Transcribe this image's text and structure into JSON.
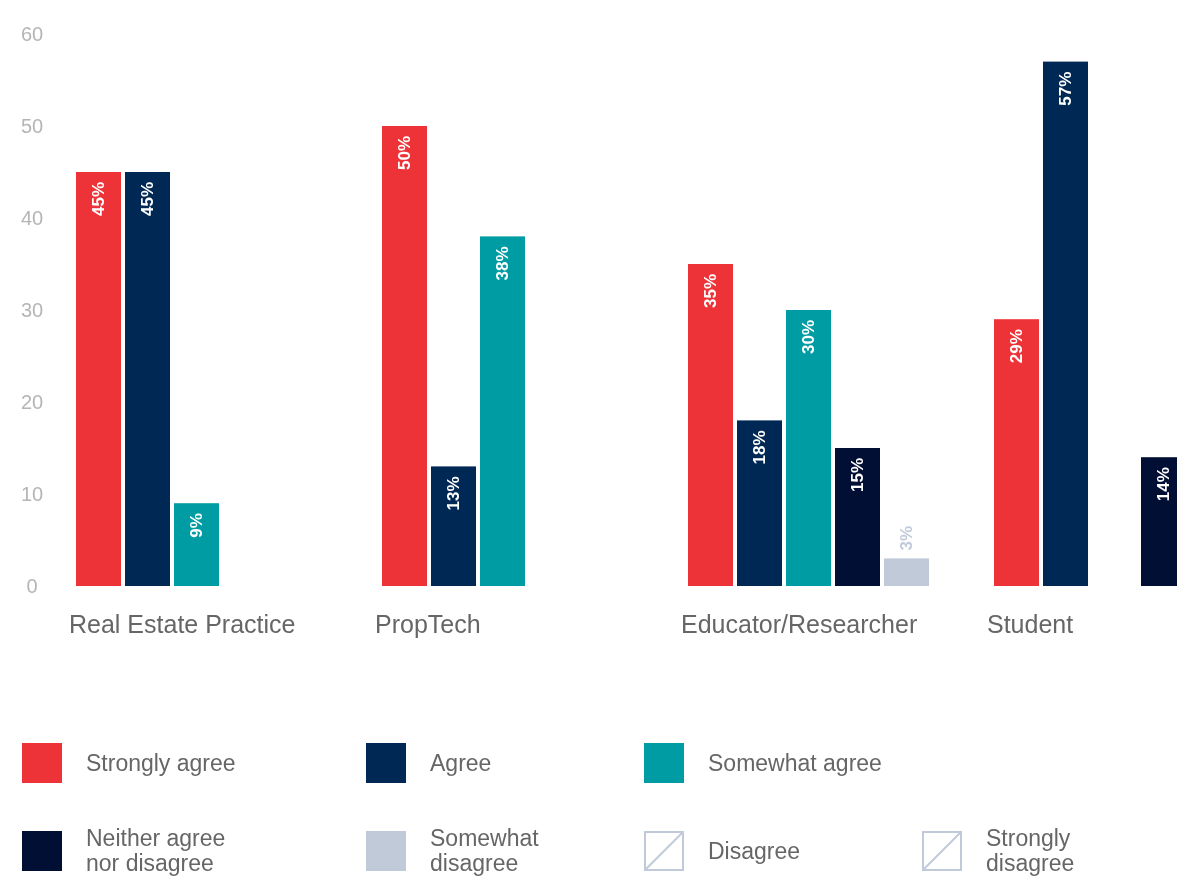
{
  "chart_data": {
    "type": "bar",
    "categories": [
      "Real Estate Practice",
      "PropTech",
      "Educator/Researcher",
      "Student"
    ],
    "series": [
      {
        "name": "Strongly agree",
        "color": "#ee3338",
        "values": [
          45,
          50,
          35,
          29
        ],
        "value_labels": [
          "45%",
          "50%",
          "35%",
          "29%"
        ]
      },
      {
        "name": "Agree",
        "color": "#002855",
        "values": [
          45,
          13,
          18,
          57
        ],
        "value_labels": [
          "45%",
          "13%",
          "18%",
          "57%"
        ]
      },
      {
        "name": "Somewhat agree",
        "color": "#009ca3",
        "values": [
          9,
          38,
          30,
          null
        ],
        "value_labels": [
          "9%",
          "38%",
          "30%",
          null
        ]
      },
      {
        "name": "Neither agree nor disagree",
        "color": "#000f33",
        "values": [
          null,
          null,
          15,
          14
        ],
        "value_labels": [
          null,
          null,
          "15%",
          "14%"
        ]
      },
      {
        "name": "Somewhat disagree",
        "color": "#c1cad9",
        "values": [
          null,
          null,
          3,
          null
        ],
        "value_labels": [
          null,
          null,
          "3%",
          null
        ]
      },
      {
        "name": "Disagree",
        "color": "#c1cad9",
        "values": [
          null,
          null,
          null,
          null
        ]
      },
      {
        "name": "Strongly disagree",
        "color": "#c1cad9",
        "values": [
          null,
          null,
          null,
          null
        ]
      }
    ],
    "ylim": [
      0,
      60
    ],
    "yticks": [
      0,
      10,
      20,
      30,
      40,
      50,
      60
    ],
    "grid": false,
    "legend": "bottom"
  }
}
